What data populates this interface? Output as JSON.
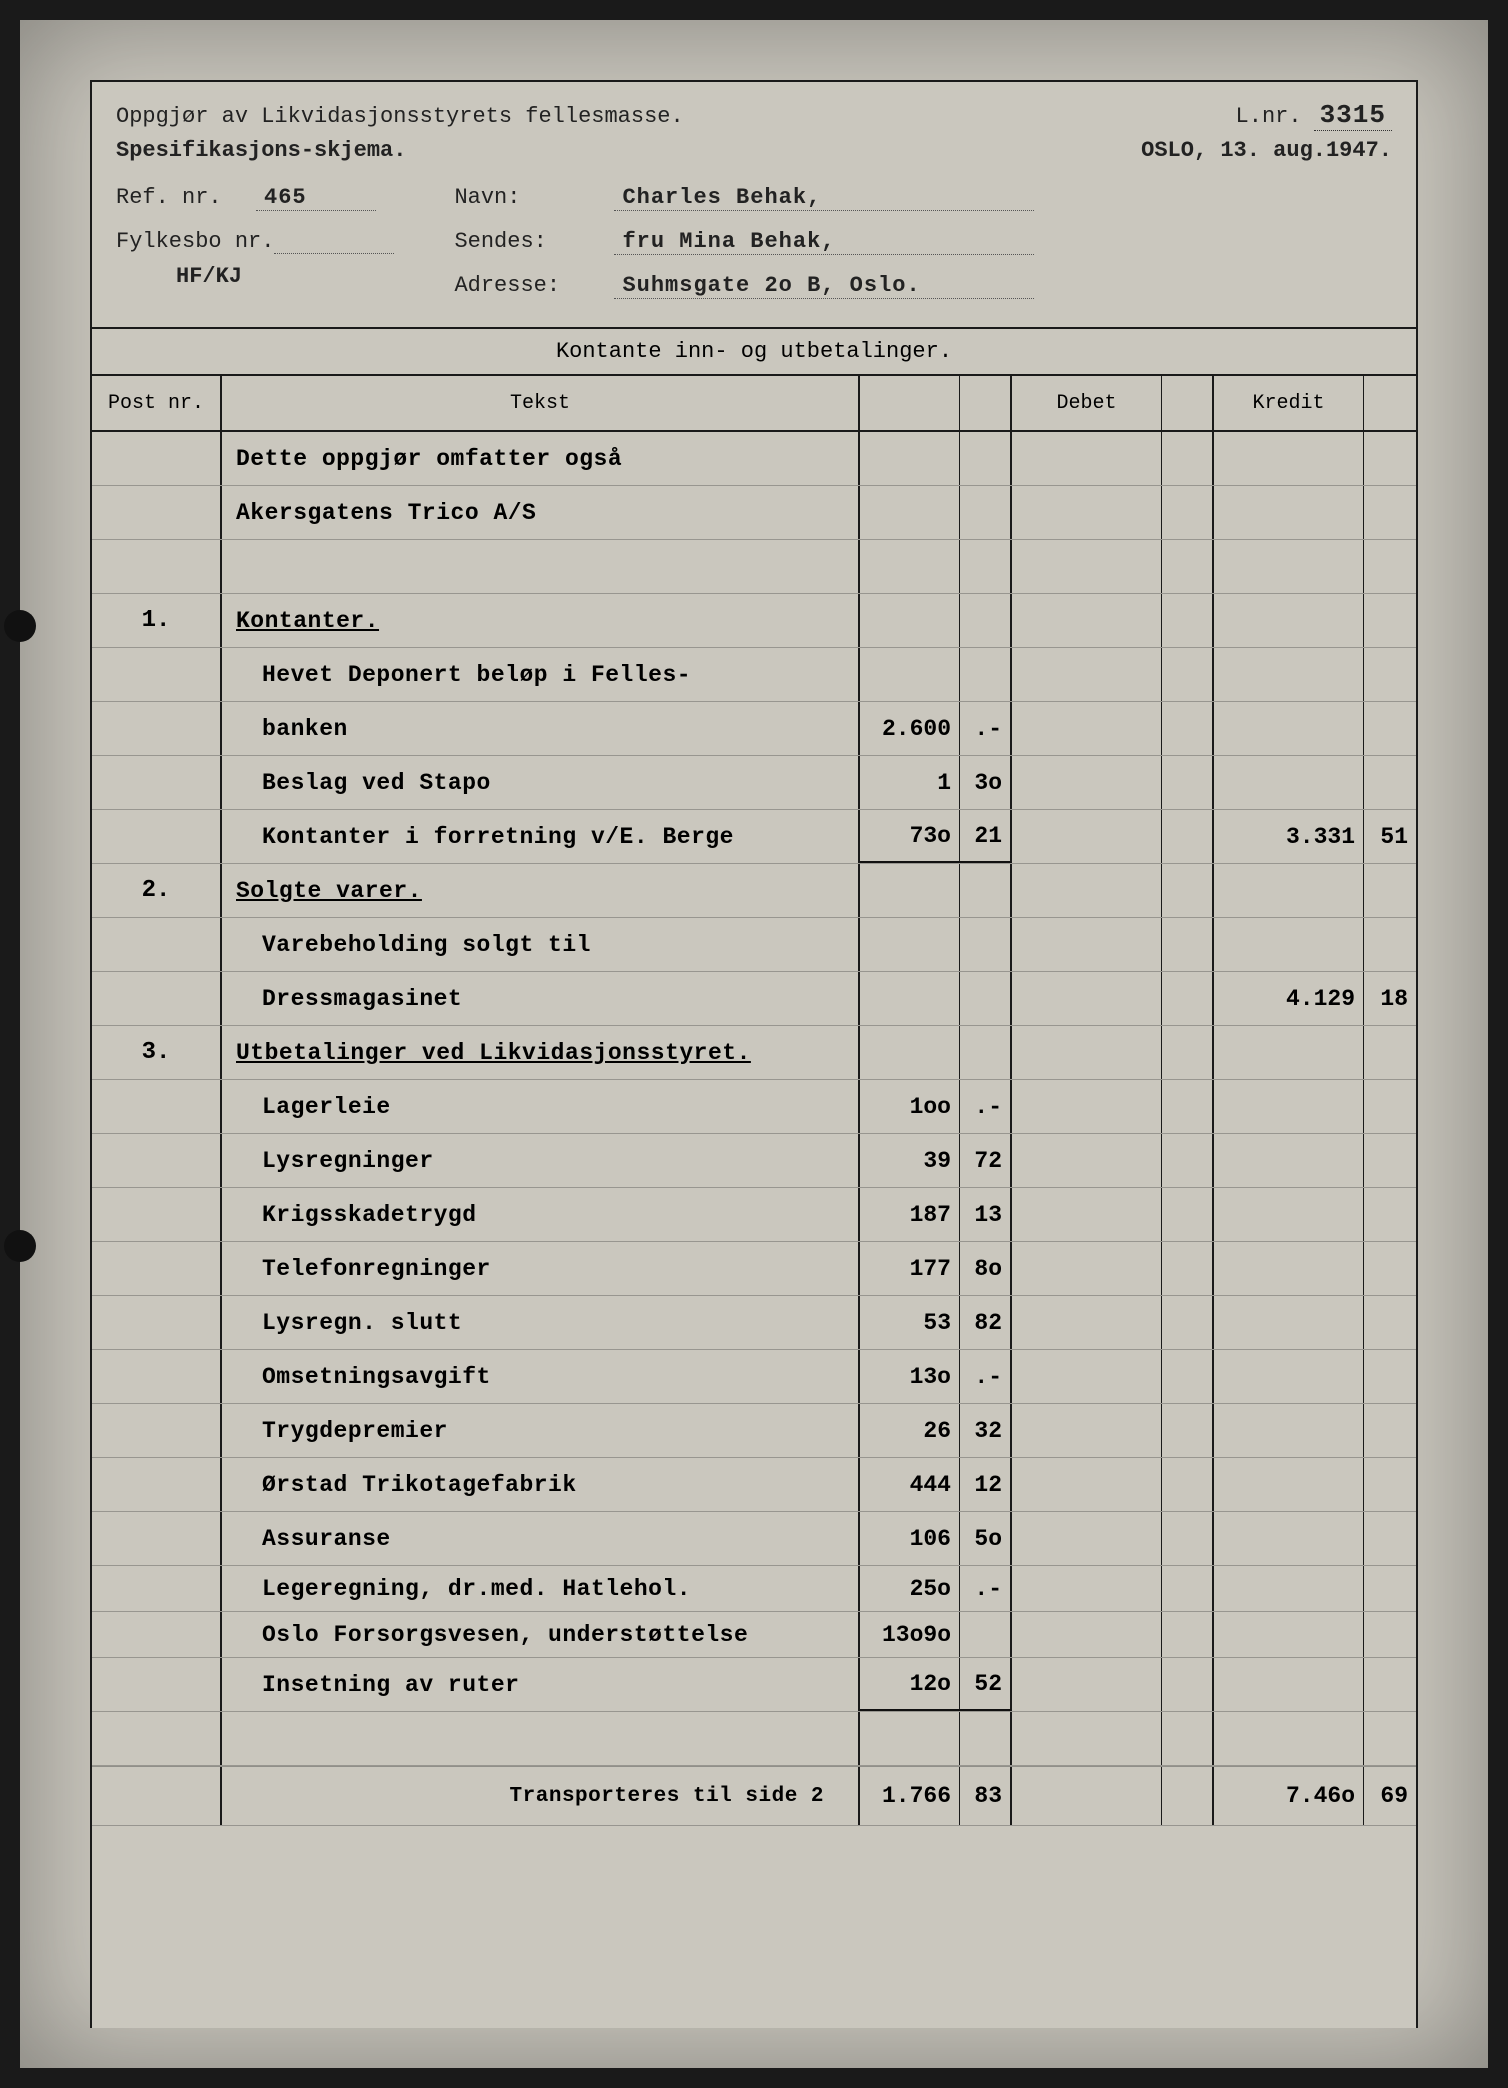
{
  "header": {
    "title1": "Oppgjør av Likvidasjonsstyrets fellesmasse.",
    "title2": "Spesifikasjons-skjema.",
    "lnr_label": "L.nr.",
    "lnr_value": "3315",
    "place": "OSLO,",
    "date": "13. aug.1947.",
    "ref_label": "Ref. nr.",
    "ref_value": "465",
    "fylkesbo_label": "Fylkesbo nr.",
    "fylkesbo_value": "",
    "navn_label": "Navn:",
    "navn_value": "Charles Behak,",
    "sendes_label": "Sendes:",
    "sendes_value": "fru Mina Behak,",
    "adresse_label": "Adresse:",
    "adresse_value": "Suhmsgate 2o B, Oslo.",
    "hf": "HF/KJ"
  },
  "table": {
    "section_title": "Kontante inn- og utbetalinger.",
    "col_post": "Post nr.",
    "col_tekst": "Tekst",
    "col_debet": "Debet",
    "col_kredit": "Kredit",
    "rows": [
      {
        "post": "",
        "tekst": "Dette oppgjør omfatter også",
        "a1": "",
        "a2": "",
        "k1": "",
        "k2": ""
      },
      {
        "post": "",
        "tekst": "Akersgatens Trico A/S",
        "a1": "",
        "a2": "",
        "k1": "",
        "k2": ""
      },
      {
        "post": "",
        "tekst": "",
        "a1": "",
        "a2": "",
        "k1": "",
        "k2": ""
      },
      {
        "post": "1.",
        "tekst": "Kontanter.",
        "und": true,
        "a1": "",
        "a2": "",
        "k1": "",
        "k2": ""
      },
      {
        "post": "",
        "tekst": "Hevet Deponert beløp i Felles-",
        "indent": true,
        "a1": "",
        "a2": "",
        "k1": "",
        "k2": ""
      },
      {
        "post": "",
        "tekst": "banken",
        "indent": true,
        "a1": "2.600",
        "a2": ".-",
        "k1": "",
        "k2": ""
      },
      {
        "post": "",
        "tekst": "Beslag ved Stapo",
        "indent": true,
        "a1": "1",
        "a2": "3o",
        "k1": "",
        "k2": ""
      },
      {
        "post": "",
        "tekst": "Kontanter i forretning v/E. Berge",
        "indent": true,
        "a1": "73o",
        "a2": "21",
        "a_und": true,
        "k1": "3.331",
        "k2": "51"
      },
      {
        "post": "2.",
        "tekst": "Solgte varer.",
        "und": true,
        "a1": "",
        "a2": "",
        "k1": "",
        "k2": ""
      },
      {
        "post": "",
        "tekst": "Varebeholding solgt til",
        "indent": true,
        "a1": "",
        "a2": "",
        "k1": "",
        "k2": ""
      },
      {
        "post": "",
        "tekst": "Dressmagasinet",
        "indent": true,
        "a1": "",
        "a2": "",
        "k1": "4.129",
        "k2": "18"
      },
      {
        "post": "3.",
        "tekst": "Utbetalinger ved Likvidasjonsstyret.",
        "und": true,
        "a1": "",
        "a2": "",
        "k1": "",
        "k2": ""
      },
      {
        "post": "",
        "tekst": "Lagerleie",
        "indent": true,
        "a1": "1oo",
        "a2": ".-",
        "k1": "",
        "k2": ""
      },
      {
        "post": "",
        "tekst": "Lysregninger",
        "indent": true,
        "a1": "39",
        "a2": "72",
        "k1": "",
        "k2": ""
      },
      {
        "post": "",
        "tekst": "Krigsskadetrygd",
        "indent": true,
        "a1": "187",
        "a2": "13",
        "k1": "",
        "k2": ""
      },
      {
        "post": "",
        "tekst": "Telefonregninger",
        "indent": true,
        "a1": "177",
        "a2": "8o",
        "k1": "",
        "k2": ""
      },
      {
        "post": "",
        "tekst": "Lysregn. slutt",
        "indent": true,
        "a1": "53",
        "a2": "82",
        "k1": "",
        "k2": ""
      },
      {
        "post": "",
        "tekst": "Omsetningsavgift",
        "indent": true,
        "a1": "13o",
        "a2": ".-",
        "k1": "",
        "k2": ""
      },
      {
        "post": "",
        "tekst": "Trygdepremier",
        "indent": true,
        "a1": "26",
        "a2": "32",
        "k1": "",
        "k2": ""
      },
      {
        "post": "",
        "tekst": "Ørstad Trikotagefabrik",
        "indent": true,
        "a1": "444",
        "a2": "12",
        "k1": "",
        "k2": ""
      },
      {
        "post": "",
        "tekst": "Assuranse",
        "indent": true,
        "a1": "106",
        "a2": "5o",
        "k1": "",
        "k2": ""
      },
      {
        "post": "",
        "tekst": "Legeregning, dr.med. Hatlehol.",
        "indent": true,
        "short": true,
        "a1": "25o",
        "a2": ".-",
        "k1": "",
        "k2": ""
      },
      {
        "post": "",
        "tekst": "Oslo Forsorgsvesen, understøttelse",
        "indent": true,
        "short": true,
        "a1": "13o9o",
        "a2": "",
        "k1": "",
        "k2": ""
      },
      {
        "post": "",
        "tekst": "Insetning av ruter",
        "indent": true,
        "a1": "12o",
        "a2": "52",
        "a_und": true,
        "k1": "",
        "k2": ""
      },
      {
        "post": "",
        "tekst": "",
        "a1": "",
        "a2": "",
        "k1": "",
        "k2": ""
      }
    ],
    "transport": {
      "label": "Transporteres til side 2",
      "a1": "1.766",
      "a2": "83",
      "k1": "7.46o",
      "k2": "69"
    }
  },
  "colors": {
    "paper": "#cac7be",
    "ink": "#1a1a1a",
    "rule": "rgba(60,60,60,0.35)"
  }
}
